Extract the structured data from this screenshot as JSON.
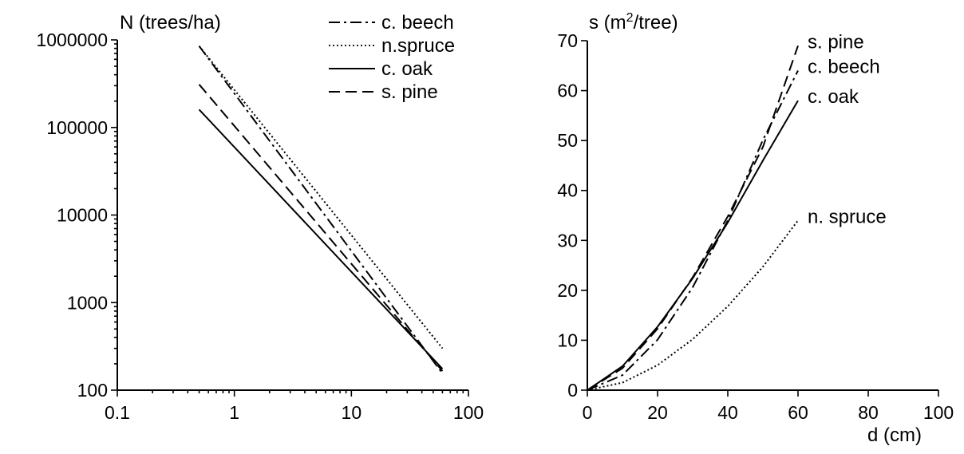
{
  "chart_data": [
    {
      "type": "line",
      "title": "",
      "ylabel": "N (trees/ha)",
      "xlabel": "",
      "x_scale": "log",
      "y_scale": "log",
      "xlim": [
        0.1,
        100
      ],
      "ylim": [
        100,
        1000000
      ],
      "x_tick_labels": [
        "0.1",
        "1",
        "10",
        "100"
      ],
      "y_tick_labels": [
        "100",
        "1000",
        "10000",
        "100000",
        "1000000"
      ],
      "legend_position": "top-right",
      "series": [
        {
          "name": "c. beech",
          "style": "dash-dot",
          "x": [
            0.5,
            60
          ],
          "y": [
            850000,
            155
          ]
        },
        {
          "name": "n.spruce",
          "style": "dotted",
          "x": [
            0.5,
            60
          ],
          "y": [
            850000,
            300
          ]
        },
        {
          "name": "c. oak",
          "style": "solid",
          "x": [
            0.5,
            60
          ],
          "y": [
            160000,
            175
          ]
        },
        {
          "name": "s. pine",
          "style": "dashed",
          "x": [
            0.5,
            60
          ],
          "y": [
            310000,
            165
          ]
        }
      ]
    },
    {
      "type": "line",
      "title": "",
      "ylabel": "s (m²/tree)",
      "ylabel_parts": {
        "before": "s (m",
        "sup": "2",
        "after": "/tree)"
      },
      "xlabel": "d (cm)",
      "xlim": [
        0,
        100
      ],
      "ylim": [
        0,
        70
      ],
      "x_tick_labels": [
        "0",
        "20",
        "40",
        "60",
        "80",
        "100"
      ],
      "y_tick_labels": [
        "0",
        "10",
        "20",
        "30",
        "40",
        "50",
        "60",
        "70"
      ],
      "series": [
        {
          "name": "s. pine",
          "style": "dashed",
          "label": "s. pine",
          "x": [
            0,
            10,
            20,
            30,
            40,
            50,
            60
          ],
          "y": [
            0,
            4.4,
            12.3,
            22.6,
            34.8,
            48.7,
            69
          ]
        },
        {
          "name": "c. beech",
          "style": "dash-dot",
          "label": "c. beech",
          "x": [
            0,
            10,
            20,
            30,
            40,
            50,
            60
          ],
          "y": [
            0,
            3.0,
            10.1,
            20.6,
            34.0,
            50.1,
            64
          ]
        },
        {
          "name": "c. oak",
          "style": "solid",
          "label": "c. oak",
          "x": [
            0,
            10,
            20,
            30,
            40,
            50,
            60
          ],
          "y": [
            0,
            4.8,
            12.7,
            22.4,
            33.6,
            46.0,
            58
          ]
        },
        {
          "name": "n. spruce",
          "style": "dotted",
          "label": "n. spruce",
          "x": [
            0,
            10,
            20,
            30,
            40,
            50,
            60
          ],
          "y": [
            0,
            1.5,
            5.0,
            10.2,
            16.8,
            24.7,
            34
          ]
        }
      ]
    }
  ]
}
